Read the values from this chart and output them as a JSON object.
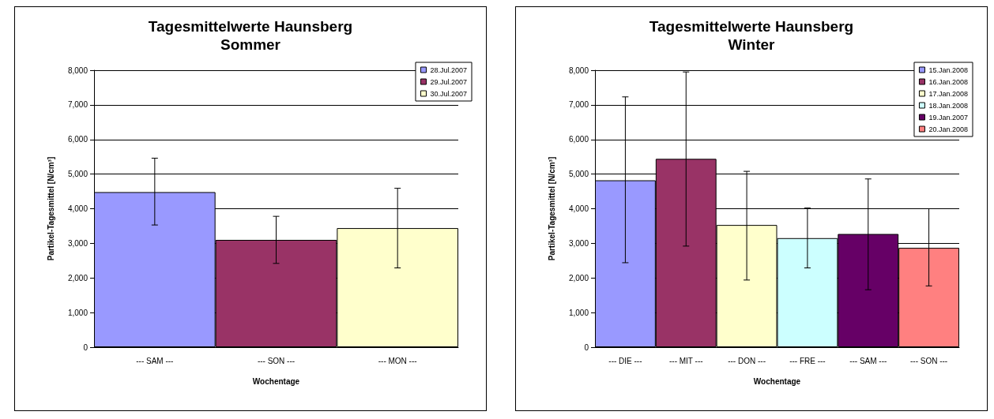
{
  "chart_data": [
    {
      "type": "bar",
      "title": "Tagesmittelwerte Haunsberg",
      "subtitle": "Sommer",
      "xlabel": "Wochentage",
      "ylabel": "Partikel-Tagesmittel [N/cm³]",
      "categories": [
        "--- SAM ---",
        "--- SON ---",
        "--- MON ---"
      ],
      "series": [
        {
          "name": "28.Jul.2007",
          "color": "#9999ff",
          "values": [
            4480,
            null,
            null
          ],
          "errors": [
            [
              3530,
              5460
            ],
            null,
            null
          ]
        },
        {
          "name": "29.Jul.2007",
          "color": "#993366",
          "values": [
            null,
            3100,
            null
          ],
          "errors": [
            null,
            [
              2420,
              3780
            ],
            null
          ]
        },
        {
          "name": "30.Jul.2007",
          "color": "#ffffcc",
          "values": [
            null,
            null,
            3440
          ],
          "errors": [
            null,
            null,
            [
              2290,
              4590
            ]
          ]
        }
      ],
      "ylim": [
        0,
        8000
      ],
      "yticks": [
        0,
        {
          "value": 1000,
          "label": "1,000"
        },
        {
          "value": 2000,
          "label": "2,000"
        },
        {
          "value": 3000,
          "label": "3,000"
        },
        {
          "value": 4000,
          "label": "4,000"
        },
        {
          "value": 5000,
          "label": "5,000"
        },
        {
          "value": 6000,
          "label": "6,000"
        },
        {
          "value": 7000,
          "label": "7,000"
        },
        {
          "value": 8000,
          "label": "8,000"
        }
      ],
      "grid": "y",
      "legend": "top right"
    },
    {
      "type": "bar",
      "title": "Tagesmittelwerte Haunsberg",
      "subtitle": "Winter",
      "xlabel": "Wochentage",
      "ylabel": "Partikel-Tagesmittel [N/cm³]",
      "categories": [
        "--- DIE ---",
        "--- MIT ---",
        "--- DON ---",
        "--- FRE ---",
        "--- SAM ---",
        "--- SON ---"
      ],
      "series": [
        {
          "name": "15.Jan.2008",
          "color": "#9999ff",
          "values": [
            4820,
            null,
            null,
            null,
            null,
            null
          ],
          "errors": [
            [
              2440,
              7230
            ],
            null,
            null,
            null,
            null,
            null
          ]
        },
        {
          "name": "16.Jan.2008",
          "color": "#993366",
          "values": [
            null,
            5440,
            null,
            null,
            null,
            null
          ],
          "errors": [
            null,
            [
              2920,
              7950
            ],
            null,
            null,
            null,
            null
          ]
        },
        {
          "name": "17.Jan.2008",
          "color": "#ffffcc",
          "values": [
            null,
            null,
            3530,
            null,
            null,
            null
          ],
          "errors": [
            null,
            null,
            [
              1940,
              5080
            ],
            null,
            null,
            null
          ]
        },
        {
          "name": "18.Jan.2008",
          "color": "#ccffff",
          "values": [
            null,
            null,
            null,
            3150,
            null,
            null
          ],
          "errors": [
            null,
            null,
            null,
            [
              2290,
              4020
            ],
            null,
            null
          ]
        },
        {
          "name": "19.Jan.2007",
          "color": "#660066",
          "values": [
            null,
            null,
            null,
            null,
            3270,
            null
          ],
          "errors": [
            null,
            null,
            null,
            null,
            [
              1660,
              4860
            ],
            null
          ]
        },
        {
          "name": "20.Jan.2008",
          "color": "#ff8080",
          "values": [
            null,
            null,
            null,
            null,
            null,
            2870
          ],
          "errors": [
            null,
            null,
            null,
            null,
            null,
            [
              1770,
              4000
            ]
          ]
        }
      ],
      "ylim": [
        0,
        8000
      ],
      "yticks": [
        0,
        {
          "value": 1000,
          "label": "1,000"
        },
        {
          "value": 2000,
          "label": "2,000"
        },
        {
          "value": 3000,
          "label": "3,000"
        },
        {
          "value": 4000,
          "label": "4,000"
        },
        {
          "value": 5000,
          "label": "5,000"
        },
        {
          "value": 6000,
          "label": "6,000"
        },
        {
          "value": 7000,
          "label": "7,000"
        },
        {
          "value": 8000,
          "label": "8,000"
        }
      ],
      "grid": "y",
      "legend": "top right"
    }
  ]
}
